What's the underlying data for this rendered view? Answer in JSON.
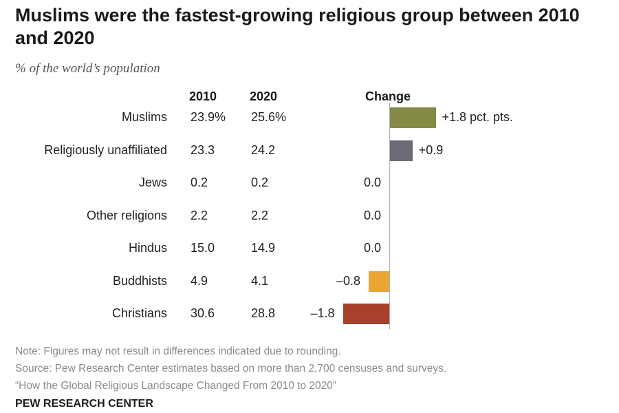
{
  "title": "Muslims were the fastest-growing religious group between 2010 and 2020",
  "subtitle": "% of the world’s population",
  "columns": {
    "y2010": "2010",
    "y2020": "2020",
    "change": "Change"
  },
  "chart_data": {
    "type": "bar",
    "orientation": "horizontal",
    "categories": [
      "Muslims",
      "Religiously unaffiliated",
      "Jews",
      "Other religions",
      "Hindus",
      "Buddhists",
      "Christians"
    ],
    "share_2010": [
      "23.9%",
      "23.3",
      "0.2",
      "2.2",
      "15.0",
      "4.9",
      "30.6"
    ],
    "share_2020": [
      "25.6%",
      "24.2",
      "0.2",
      "2.2",
      "14.9",
      "4.1",
      "28.8"
    ],
    "series": [
      {
        "values": [
          1.8,
          0.9,
          0.0,
          0.0,
          0.0,
          -0.8,
          -1.8
        ]
      }
    ],
    "change_labels": [
      "+1.8 pct. pts.",
      "+0.9",
      "0.0",
      "0.0",
      "0.0",
      "–0.8",
      "–1.8"
    ],
    "colors": [
      "#848a46",
      "#6b6a76",
      "#cccccc",
      "#cccccc",
      "#cccccc",
      "#eba535",
      "#a8402b"
    ],
    "xlim": [
      -1.8,
      1.8
    ]
  },
  "notes": {
    "note": "Note: Figures may not result in differences indicated due to rounding.",
    "source": "Source: Pew Research Center estimates based on more than 2,700 censuses and surveys.",
    "report": "“How the Global Religious Landscape Changed From 2010 to 2020”"
  },
  "brand": "PEW RESEARCH CENTER"
}
